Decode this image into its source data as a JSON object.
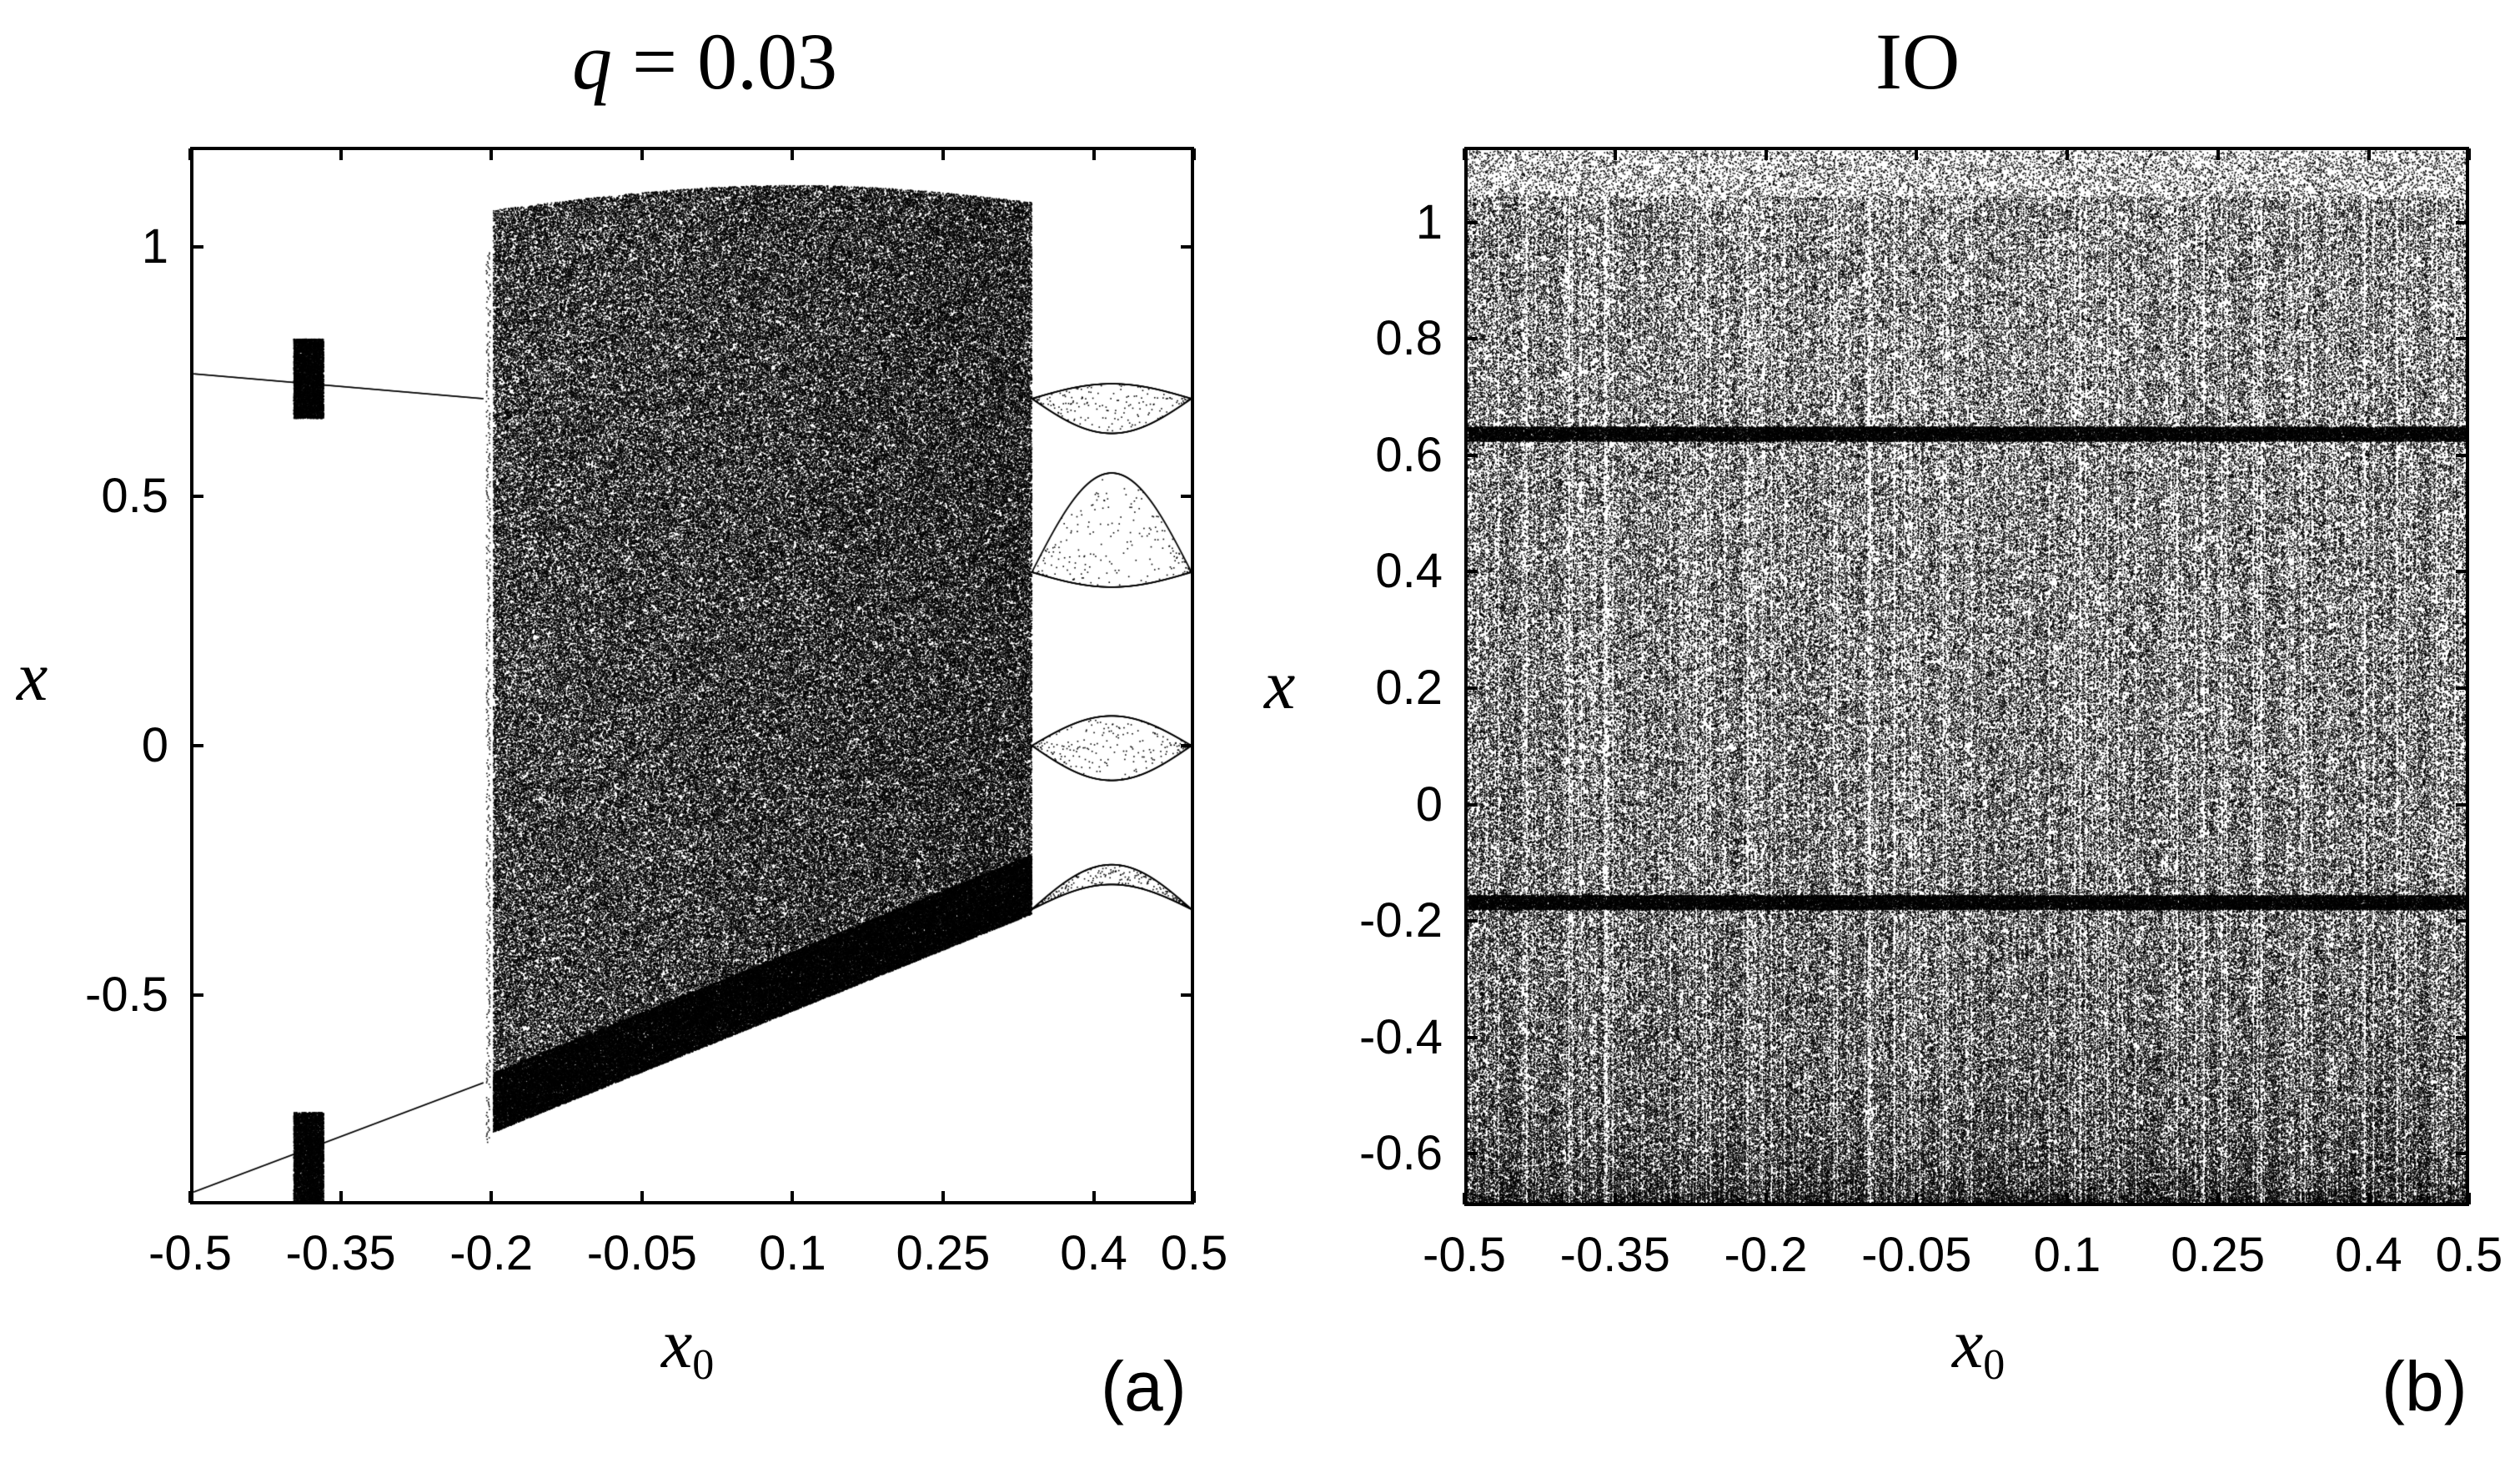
{
  "chart_data": [
    {
      "panel_id": "a",
      "type": "scatter",
      "title": "q = 0.03",
      "title_var": "q",
      "title_value": "0.03",
      "panel_tag": "(a)",
      "xlabel": "x0",
      "xlabel_main": "x",
      "xlabel_sub": "0",
      "ylabel": "x",
      "xlim": [
        -0.5,
        0.5
      ],
      "ylim": [
        -0.92,
        1.2
      ],
      "xticks": [
        -0.5,
        -0.35,
        -0.2,
        -0.05,
        0.1,
        0.25,
        0.4,
        0.5
      ],
      "xtick_labels": [
        "-0.5",
        "-0.35",
        "-0.2",
        "-0.05",
        "0.1",
        "0.25",
        "0.4",
        "0.5"
      ],
      "yticks": [
        -0.5,
        0,
        0.5,
        1
      ],
      "ytick_labels": [
        "-0.5",
        "0",
        "0.5",
        "1"
      ],
      "regions": [
        {
          "name": "period-2 branch upper",
          "x_range": [
            -0.5,
            -0.21
          ],
          "y_start": 0.75,
          "y_end": 0.7
        },
        {
          "name": "period-2 branch lower",
          "x_range": [
            -0.5,
            -0.21
          ],
          "y_start": -0.9,
          "y_end": -0.68
        },
        {
          "name": "chaotic band upper",
          "x_range": [
            -0.4,
            -0.37
          ],
          "y_range": [
            0.66,
            0.82
          ]
        },
        {
          "name": "chaotic band lower",
          "x_range": [
            -0.4,
            -0.37
          ],
          "y_range": [
            -0.92,
            -0.74
          ]
        },
        {
          "name": "chaotic region",
          "x_range": [
            -0.2,
            0.34
          ],
          "y_range": [
            -0.78,
            1.13
          ]
        },
        {
          "name": "periodic window",
          "x_range": [
            0.34,
            0.5
          ],
          "y_range": [
            -0.35,
            0.73
          ]
        }
      ]
    },
    {
      "panel_id": "b",
      "type": "scatter",
      "title": "IO",
      "panel_tag": "(b)",
      "xlabel": "x0",
      "xlabel_main": "x",
      "xlabel_sub": "0",
      "ylabel": "x",
      "xlim": [
        -0.5,
        0.5
      ],
      "ylim": [
        -0.69,
        1.13
      ],
      "xticks": [
        -0.5,
        -0.35,
        -0.2,
        -0.05,
        0.1,
        0.25,
        0.4,
        0.5
      ],
      "xtick_labels": [
        "-0.5",
        "-0.35",
        "-0.2",
        "-0.05",
        "0.1",
        "0.25",
        "0.4",
        "0.5"
      ],
      "yticks": [
        -0.6,
        -0.4,
        -0.2,
        0,
        0.2,
        0.4,
        0.6,
        0.8,
        1
      ],
      "ytick_labels": [
        "-0.6",
        "-0.4",
        "-0.2",
        "0",
        "0.2",
        "0.4",
        "0.6",
        "0.8",
        "1"
      ],
      "regions": [
        {
          "name": "dense chaotic fill",
          "x_range": [
            -0.5,
            0.5
          ],
          "y_range": [
            -0.69,
            1.05
          ]
        },
        {
          "name": "sparse top band",
          "x_range": [
            -0.5,
            0.5
          ],
          "y_range": [
            1.05,
            1.13
          ]
        },
        {
          "name": "dense line",
          "y": 0.64
        },
        {
          "name": "dense line",
          "y": -0.17
        }
      ]
    }
  ]
}
